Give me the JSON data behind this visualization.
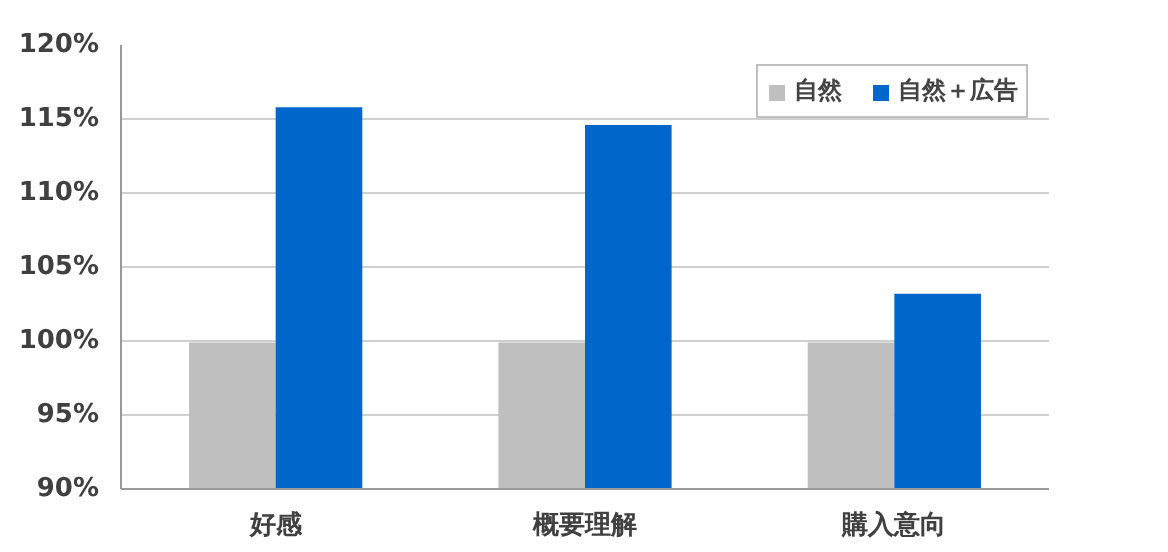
{
  "chart_data": {
    "type": "bar",
    "categories": [
      "好感",
      "概要理解",
      "購入意向"
    ],
    "series": [
      {
        "name": "自然",
        "color": "#bfbfbf",
        "values": [
          99.9,
          99.9,
          99.9
        ]
      },
      {
        "name": "自然＋広告",
        "color": "#0066cc",
        "values": [
          115.8,
          114.6,
          103.2
        ]
      }
    ],
    "ylim": [
      90,
      120
    ],
    "yticks": [
      {
        "value": 90,
        "label": "90%"
      },
      {
        "value": 95,
        "label": "95%"
      },
      {
        "value": 100,
        "label": "100%"
      },
      {
        "value": 105,
        "label": "105%"
      },
      {
        "value": 110,
        "label": "110%"
      },
      {
        "value": 115,
        "label": "115%"
      },
      {
        "value": 120,
        "label": "120%"
      }
    ],
    "grid": "y",
    "legend": "top right"
  }
}
